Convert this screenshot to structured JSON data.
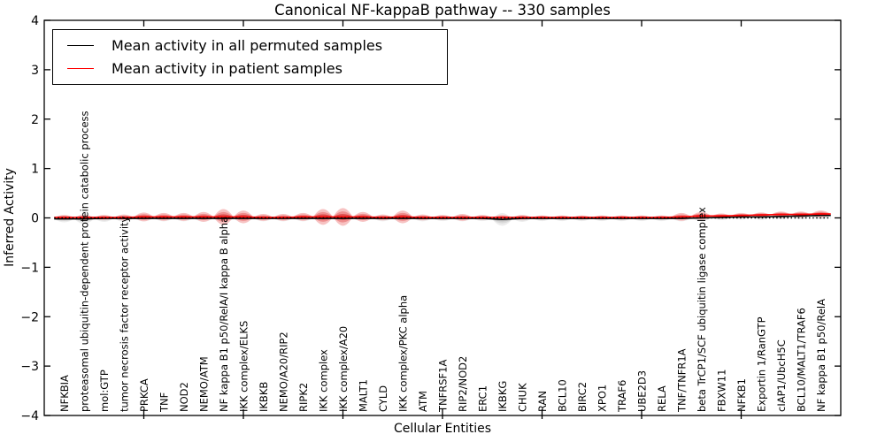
{
  "title": "Canonical NF-kappaB pathway -- 330 samples",
  "legend": {
    "permuted_label": "Mean activity in all permuted samples",
    "patient_label": "Mean activity in patient samples",
    "permuted_color": "#000000",
    "patient_color": "#ff0000"
  },
  "chart_data": {
    "type": "violin",
    "title": "Canonical NF-kappaB pathway -- 330 samples",
    "xlabel": "Cellular Entities",
    "ylabel": "Inferred Activity",
    "ylim": [
      -4,
      4
    ],
    "ytick_labels": [
      "4",
      "3",
      "2",
      "1",
      "0",
      "−1",
      "−2",
      "−3",
      "−4"
    ],
    "ytick_values": [
      4,
      3,
      2,
      1,
      0,
      -1,
      -2,
      -3,
      -4
    ],
    "xtick_values": [
      5,
      10,
      15,
      20,
      25,
      30,
      35
    ],
    "zero_line": 0,
    "legend_position": "upper left",
    "grid": false,
    "categories": [
      "NFKBIA",
      "proteasomal ubiquitin-dependent protein catabolic process",
      "mol:GTP",
      "tumor necrosis factor receptor activity",
      "PRKCA",
      "TNF",
      "NOD2",
      "NEMO/ATM",
      "NF kappa B1 p50/RelA/I kappa B alpha",
      "IKK complex/ELKS",
      "IKBKB",
      "NEMO/A20/RIP2",
      "RIPK2",
      "IKK complex",
      "IKK complex/A20",
      "MALT1",
      "CYLD",
      "IKK complex/PKC alpha",
      "ATM",
      "TNFRSF1A",
      "RIP2/NOD2",
      "ERC1",
      "IKBKG",
      "CHUK",
      "RAN",
      "BCL10",
      "BIRC2",
      "XPO1",
      "TRAF6",
      "UBE2D3",
      "RELA",
      "TNF/TNFR1A",
      "beta TrCP1/SCF ubiquitin ligase complex",
      "FBXW11",
      "NFKB1",
      "Exportin 1/RanGTP",
      "cIAP1/UbcH5C",
      "BCL10/MALT1/TRAF6",
      "NF kappa B1 p50/RelA"
    ],
    "series": [
      {
        "name": "Mean activity in all permuted samples",
        "color": "#000000",
        "values": [
          -0.02,
          -0.02,
          -0.01,
          -0.01,
          -0.01,
          -0.01,
          -0.01,
          -0.01,
          -0.01,
          -0.01,
          -0.01,
          -0.01,
          -0.01,
          -0.01,
          -0.01,
          -0.01,
          -0.01,
          -0.01,
          -0.01,
          -0.01,
          -0.01,
          -0.01,
          -0.03,
          -0.01,
          -0.01,
          -0.01,
          -0.01,
          -0.01,
          -0.01,
          -0.01,
          -0.01,
          -0.01,
          0.0,
          0.01,
          0.02,
          0.02,
          0.03,
          0.04,
          0.05
        ]
      },
      {
        "name": "Mean activity in patient samples",
        "color": "#ff0000",
        "values": [
          0.01,
          0.01,
          0.01,
          0.01,
          0.02,
          0.02,
          0.02,
          0.02,
          0.02,
          0.02,
          0.01,
          0.01,
          0.02,
          0.02,
          0.02,
          0.02,
          0.01,
          0.02,
          0.01,
          0.01,
          0.01,
          0.01,
          0.01,
          0.01,
          0.01,
          0.01,
          0.01,
          0.01,
          0.01,
          0.01,
          0.01,
          0.02,
          0.04,
          0.04,
          0.05,
          0.06,
          0.07,
          0.07,
          0.08
        ]
      }
    ],
    "violins": {
      "permuted_halfheight": [
        0.07,
        0.1,
        0.07,
        0.07,
        0.06,
        0.06,
        0.06,
        0.07,
        0.1,
        0.09,
        0.06,
        0.06,
        0.06,
        0.08,
        0.08,
        0.06,
        0.06,
        0.09,
        0.06,
        0.055,
        0.06,
        0.055,
        0.13,
        0.07,
        0.055,
        0.055,
        0.055,
        0.055,
        0.055,
        0.055,
        0.055,
        0.06,
        0.07,
        0.055,
        0.055,
        0.06,
        0.06,
        0.07,
        0.08
      ],
      "patient_halfheight": [
        0.05,
        0.05,
        0.05,
        0.06,
        0.09,
        0.08,
        0.08,
        0.1,
        0.16,
        0.13,
        0.07,
        0.07,
        0.08,
        0.16,
        0.18,
        0.1,
        0.06,
        0.13,
        0.06,
        0.05,
        0.07,
        0.05,
        0.05,
        0.05,
        0.04,
        0.04,
        0.04,
        0.04,
        0.04,
        0.04,
        0.04,
        0.08,
        0.08,
        0.05,
        0.05,
        0.05,
        0.06,
        0.06,
        0.07
      ],
      "permuted_layer_colors": [
        "#ececec",
        "#d9d9d9",
        "#bdbdbd"
      ],
      "patient_layer_colors": [
        "#f7c2c2",
        "#ee8e8e",
        "#dd4b4b"
      ]
    }
  }
}
